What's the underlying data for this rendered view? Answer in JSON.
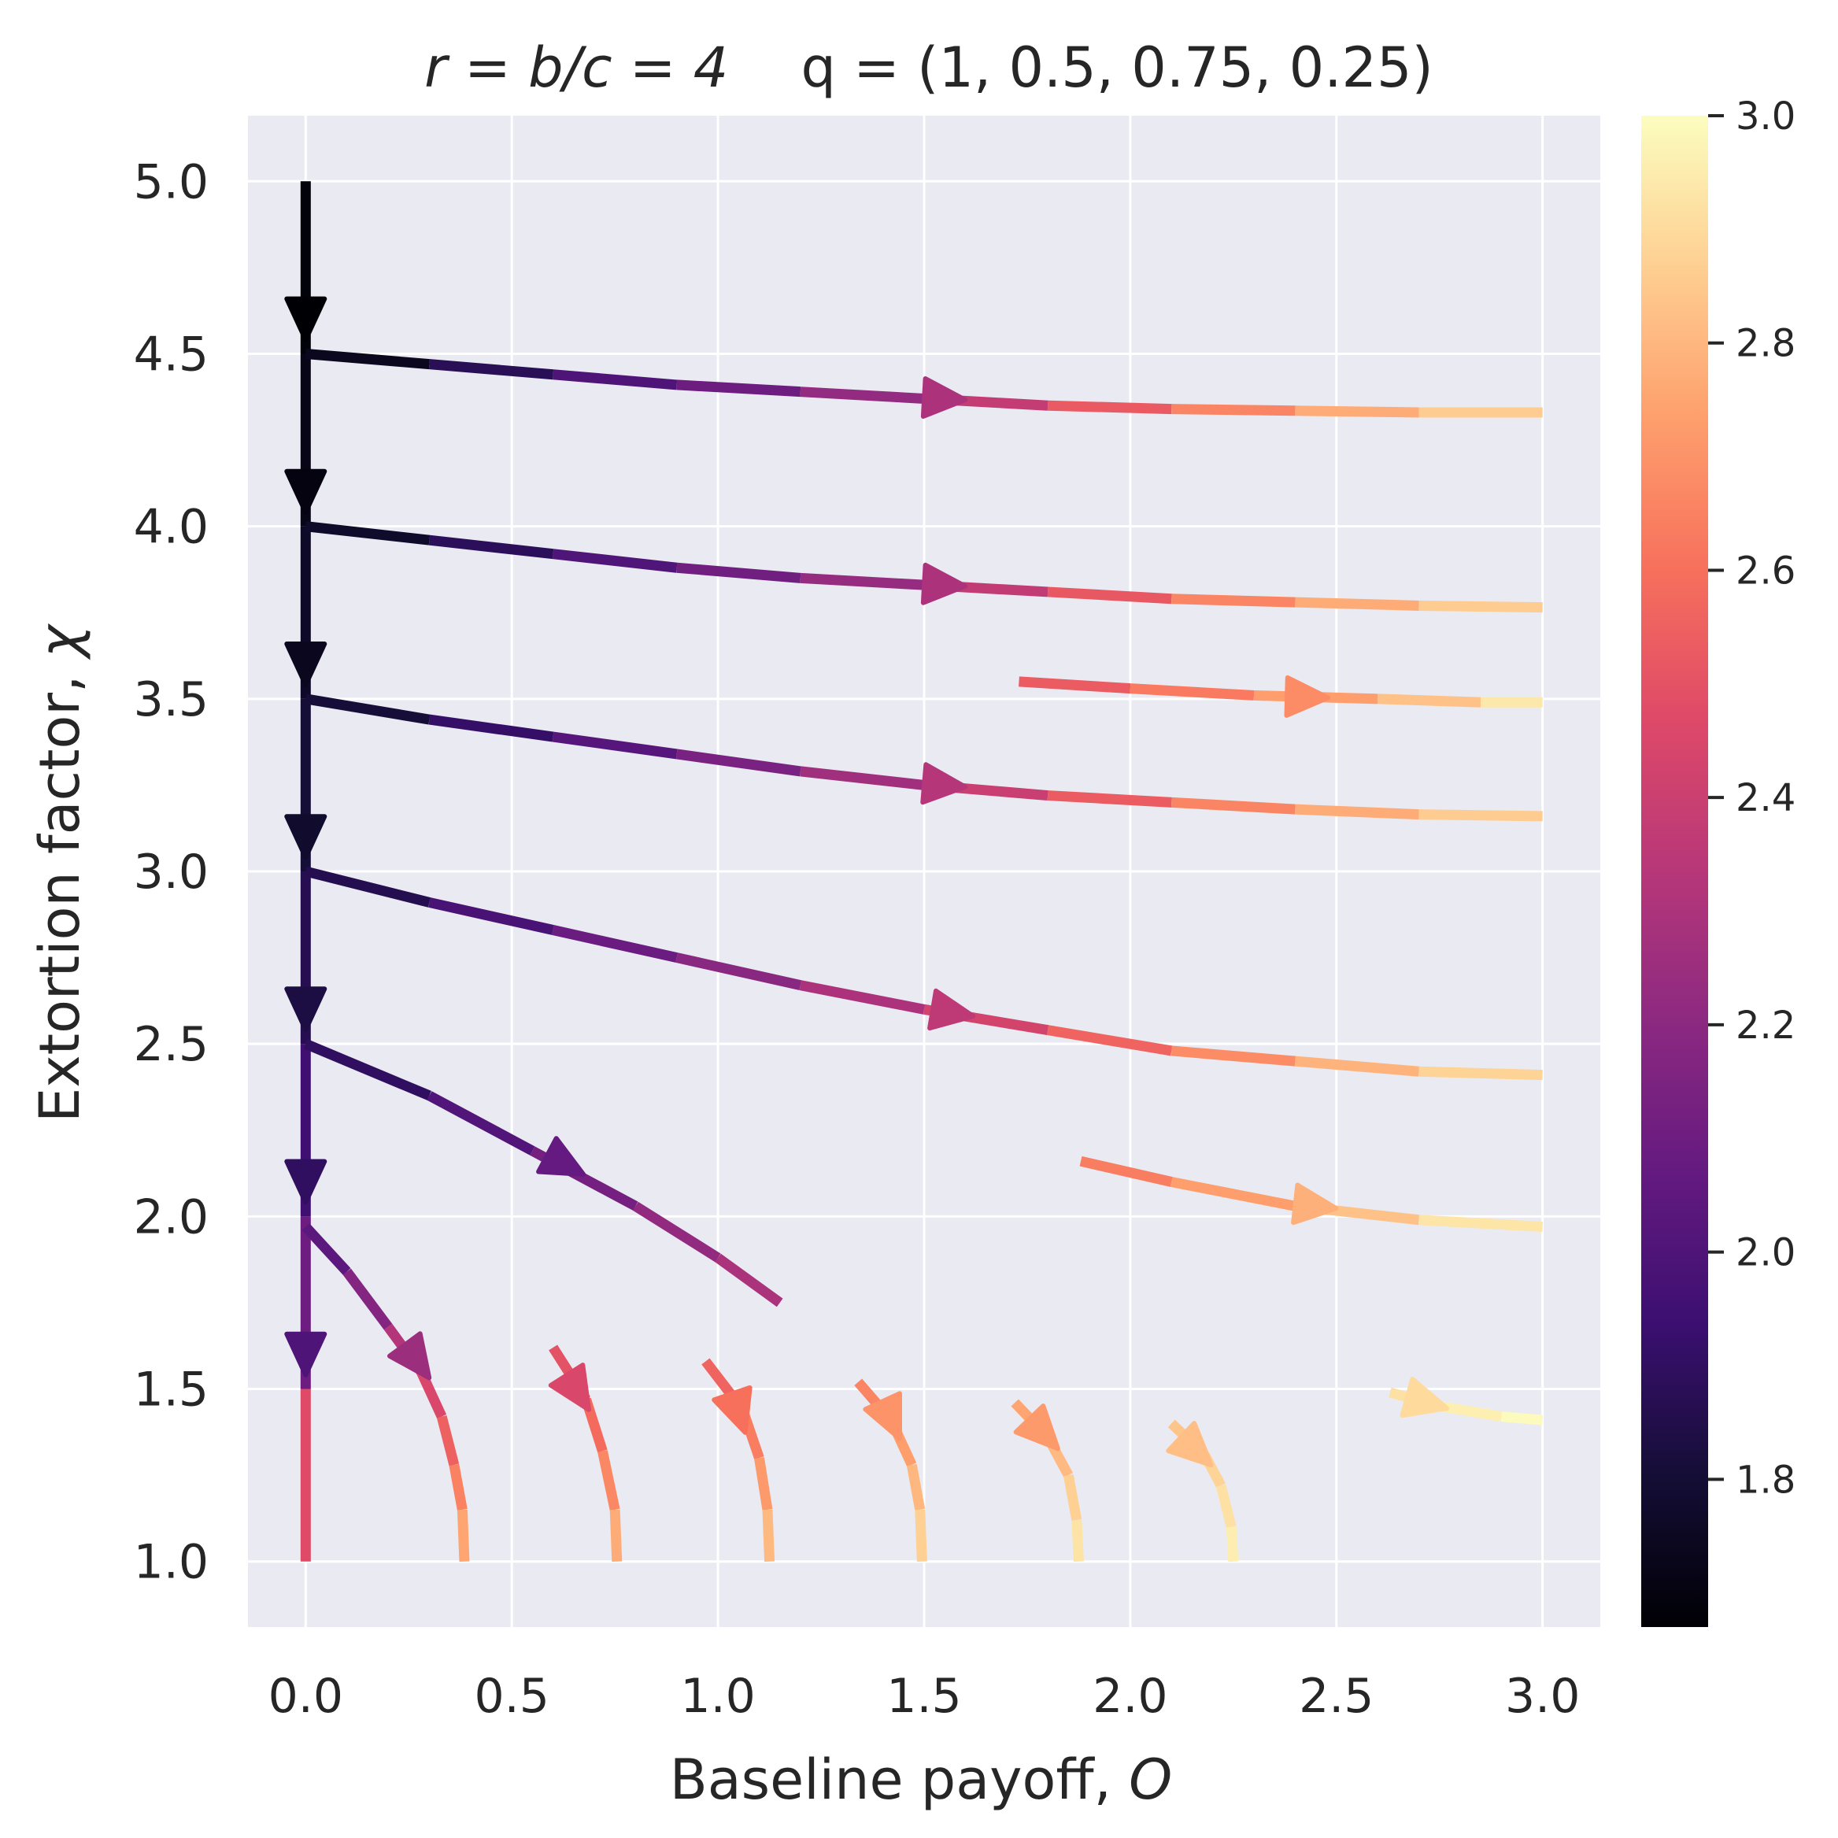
{
  "chart_data": {
    "type": "streamplot",
    "title": "r = b/c = 4    q = (1, 0.5, 0.75, 0.25)",
    "title_parts": {
      "left": "r = b/c = 4",
      "right": "q = (1, 0.5, 0.75, 0.25)"
    },
    "xlabel": "Baseline payoff, O",
    "xlabel_parts": {
      "text": "Baseline payoff, ",
      "var": "O"
    },
    "ylabel": "Extortion factor, χ",
    "ylabel_parts": {
      "text": "Extortion factor, ",
      "var": "χ"
    },
    "xlim": [
      -0.14,
      3.14
    ],
    "ylim": [
      0.81,
      5.19
    ],
    "xticks": [
      0.0,
      0.5,
      1.0,
      1.5,
      2.0,
      2.5,
      3.0
    ],
    "yticks": [
      1.0,
      1.5,
      2.0,
      2.5,
      3.0,
      3.5,
      4.0,
      4.5,
      5.0
    ],
    "tick_format": 1,
    "grid": true,
    "colormap": "magma",
    "colorbar": {
      "range": [
        1.67,
        3.0
      ],
      "ticks": [
        1.8,
        2.0,
        2.2,
        2.4,
        2.6,
        2.8,
        3.0
      ]
    },
    "streamlines": [
      {
        "points": [
          [
            0,
            5.0
          ],
          [
            0,
            4.5
          ],
          [
            0,
            4.0
          ],
          [
            0,
            3.5
          ],
          [
            0,
            3.0
          ],
          [
            0,
            2.5
          ],
          [
            0,
            2.0
          ],
          [
            0,
            1.5
          ],
          [
            0,
            1.0
          ]
        ],
        "values": [
          1.67,
          1.7,
          1.74,
          1.78,
          1.83,
          1.9,
          2.0,
          2.2,
          2.75
        ],
        "arrows": [
          [
            0,
            4.6
          ],
          [
            0,
            4.1
          ],
          [
            0,
            3.6
          ],
          [
            0,
            3.1
          ],
          [
            0,
            2.6
          ],
          [
            0,
            2.1
          ],
          [
            0,
            1.6
          ]
        ]
      },
      {
        "points": [
          [
            0,
            4.5
          ],
          [
            0.3,
            4.47
          ],
          [
            0.6,
            4.44
          ],
          [
            0.9,
            4.41
          ],
          [
            1.2,
            4.39
          ],
          [
            1.5,
            4.37
          ],
          [
            1.8,
            4.35
          ],
          [
            2.1,
            4.34
          ],
          [
            2.4,
            4.335
          ],
          [
            2.7,
            4.33
          ],
          [
            3.0,
            4.33
          ]
        ],
        "values": [
          1.68,
          1.8,
          1.95,
          2.05,
          2.15,
          2.3,
          2.45,
          2.6,
          2.72,
          2.82,
          2.9
        ],
        "arrows": [
          [
            1.55,
            4.37
          ]
        ]
      },
      {
        "points": [
          [
            0,
            4.0
          ],
          [
            0.3,
            3.96
          ],
          [
            0.6,
            3.92
          ],
          [
            0.9,
            3.88
          ],
          [
            1.2,
            3.85
          ],
          [
            1.5,
            3.83
          ],
          [
            1.8,
            3.81
          ],
          [
            2.1,
            3.79
          ],
          [
            2.4,
            3.78
          ],
          [
            2.7,
            3.77
          ],
          [
            3.0,
            3.765
          ]
        ],
        "values": [
          1.72,
          1.82,
          1.95,
          2.06,
          2.16,
          2.3,
          2.44,
          2.6,
          2.72,
          2.82,
          2.9
        ],
        "arrows": [
          [
            1.55,
            3.83
          ]
        ]
      },
      {
        "points": [
          [
            1.73,
            3.55
          ],
          [
            2.0,
            3.53
          ],
          [
            2.3,
            3.51
          ],
          [
            2.6,
            3.5
          ],
          [
            2.85,
            3.49
          ],
          [
            3.0,
            3.49
          ]
        ],
        "values": [
          2.48,
          2.58,
          2.68,
          2.78,
          2.88,
          3.0
        ],
        "arrows": [
          [
            2.43,
            3.505
          ]
        ]
      },
      {
        "points": [
          [
            0,
            3.5
          ],
          [
            0.3,
            3.44
          ],
          [
            0.6,
            3.39
          ],
          [
            0.9,
            3.34
          ],
          [
            1.2,
            3.29
          ],
          [
            1.5,
            3.25
          ],
          [
            1.8,
            3.22
          ],
          [
            2.1,
            3.2
          ],
          [
            2.4,
            3.18
          ],
          [
            2.7,
            3.165
          ],
          [
            3.0,
            3.16
          ]
        ],
        "values": [
          1.76,
          1.86,
          1.97,
          2.08,
          2.2,
          2.33,
          2.46,
          2.6,
          2.72,
          2.82,
          2.9
        ],
        "arrows": [
          [
            1.55,
            3.25
          ]
        ]
      },
      {
        "points": [
          [
            0,
            3.0
          ],
          [
            0.3,
            2.91
          ],
          [
            0.6,
            2.83
          ],
          [
            0.9,
            2.75
          ],
          [
            1.2,
            2.67
          ],
          [
            1.5,
            2.6
          ],
          [
            1.8,
            2.54
          ],
          [
            2.1,
            2.48
          ],
          [
            2.4,
            2.45
          ],
          [
            2.7,
            2.42
          ],
          [
            3.0,
            2.41
          ]
        ],
        "values": [
          1.8,
          1.92,
          2.04,
          2.14,
          2.24,
          2.36,
          2.5,
          2.62,
          2.74,
          2.84,
          2.92
        ],
        "arrows": [
          [
            1.57,
            2.59
          ]
        ]
      },
      {
        "points": [
          [
            1.88,
            2.16
          ],
          [
            2.1,
            2.1
          ],
          [
            2.4,
            2.03
          ],
          [
            2.7,
            1.99
          ],
          [
            3.0,
            1.97
          ]
        ],
        "values": [
          2.6,
          2.68,
          2.78,
          2.88,
          2.98
        ],
        "arrows": [
          [
            2.45,
            2.03
          ]
        ]
      },
      {
        "points": [
          [
            0,
            2.5
          ],
          [
            0.3,
            2.35
          ],
          [
            0.55,
            2.19
          ],
          [
            0.8,
            2.03
          ],
          [
            1.0,
            1.88
          ],
          [
            1.15,
            1.75
          ]
        ],
        "values": [
          1.85,
          1.95,
          2.07,
          2.18,
          2.26,
          2.33
        ],
        "arrows": [
          [
            0.63,
            2.15
          ]
        ]
      },
      {
        "points": [
          [
            0,
            1.97
          ],
          [
            0.1,
            1.84
          ],
          [
            0.2,
            1.68
          ],
          [
            0.28,
            1.55
          ],
          [
            0.33,
            1.42
          ],
          [
            0.36,
            1.28
          ],
          [
            0.38,
            1.15
          ],
          [
            0.385,
            1.0
          ]
        ],
        "values": [
          1.98,
          2.1,
          2.25,
          2.4,
          2.5,
          2.6,
          2.7,
          2.8
        ],
        "arrows": [
          [
            0.27,
            1.58
          ]
        ]
      },
      {
        "points": [
          [
            0.6,
            1.62
          ],
          [
            0.68,
            1.47
          ],
          [
            0.72,
            1.32
          ],
          [
            0.75,
            1.15
          ],
          [
            0.755,
            1.0
          ]
        ],
        "values": [
          2.45,
          2.55,
          2.62,
          2.72,
          2.82
        ],
        "arrows": [
          [
            0.66,
            1.49
          ]
        ]
      },
      {
        "points": [
          [
            0.97,
            1.58
          ],
          [
            1.06,
            1.44
          ],
          [
            1.1,
            1.3
          ],
          [
            1.12,
            1.15
          ],
          [
            1.125,
            1.0
          ]
        ],
        "values": [
          2.52,
          2.6,
          2.68,
          2.76,
          2.85
        ],
        "arrows": [
          [
            1.05,
            1.43
          ]
        ]
      },
      {
        "points": [
          [
            1.34,
            1.52
          ],
          [
            1.42,
            1.41
          ],
          [
            1.47,
            1.28
          ],
          [
            1.49,
            1.15
          ],
          [
            1.495,
            1.0
          ]
        ],
        "values": [
          2.62,
          2.7,
          2.76,
          2.84,
          2.9
        ],
        "arrows": [
          [
            1.42,
            1.41
          ]
        ]
      },
      {
        "points": [
          [
            1.72,
            1.46
          ],
          [
            1.8,
            1.36
          ],
          [
            1.85,
            1.25
          ],
          [
            1.87,
            1.12
          ],
          [
            1.875,
            1.0
          ]
        ],
        "values": [
          2.72,
          2.78,
          2.84,
          2.9,
          2.95
        ],
        "arrows": [
          [
            1.79,
            1.37
          ]
        ]
      },
      {
        "points": [
          [
            2.1,
            1.4
          ],
          [
            2.18,
            1.31
          ],
          [
            2.22,
            1.22
          ],
          [
            2.245,
            1.1
          ],
          [
            2.25,
            1.0
          ]
        ],
        "values": [
          2.82,
          2.86,
          2.9,
          2.94,
          2.97
        ],
        "arrows": [
          [
            2.16,
            1.32
          ]
        ]
      },
      {
        "points": [
          [
            2.63,
            1.49
          ],
          [
            2.75,
            1.45
          ],
          [
            2.9,
            1.42
          ],
          [
            3.0,
            1.41
          ]
        ],
        "values": [
          2.9,
          2.94,
          2.98,
          3.0
        ],
        "arrows": [
          [
            2.72,
            1.46
          ]
        ]
      }
    ]
  }
}
